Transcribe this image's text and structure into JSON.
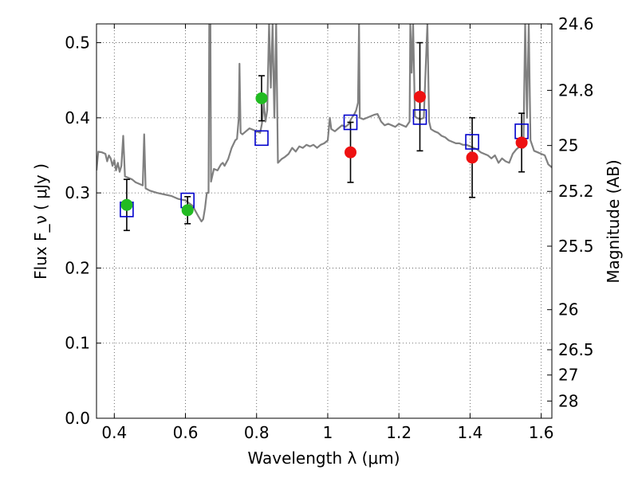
{
  "chart_data": {
    "type": "scatter",
    "title": "",
    "xlabel": "Wavelength  λ (μm)",
    "ylabel": "Flux  F_ν  ( μJy )",
    "ylabel_right": "Magnitude (AB)",
    "xlim": [
      0.35,
      1.63
    ],
    "ylim": [
      0.0,
      0.525
    ],
    "grid": true,
    "x_ticks": [
      0.4,
      0.6,
      0.8,
      1.0,
      1.2,
      1.4,
      1.6
    ],
    "x_tick_labels": [
      "0.4",
      "0.6",
      "0.8",
      "1",
      "1.2",
      "1.4",
      "1.6"
    ],
    "y_ticks": [
      0.0,
      0.1,
      0.2,
      0.3,
      0.4,
      0.5
    ],
    "y_tick_labels": [
      "0.0",
      "0.1",
      "0.2",
      "0.3",
      "0.4",
      "0.5"
    ],
    "mag_ticks": [
      24.6,
      24.8,
      25,
      25.2,
      25.5,
      26,
      26.5,
      27,
      28
    ],
    "mag_tick_labels": [
      "24.6",
      "24.8",
      "25",
      "25.2",
      "25.5",
      "26",
      "26.5",
      "27",
      "28"
    ],
    "series": [
      {
        "marker": "circle",
        "color": "#22bb22",
        "points": [
          {
            "x": 0.435,
            "y": 0.284,
            "err": 0.034
          },
          {
            "x": 0.606,
            "y": 0.277,
            "err": 0.018
          },
          {
            "x": 0.814,
            "y": 0.426,
            "err": 0.03
          }
        ]
      },
      {
        "marker": "circle",
        "color": "#ee1111",
        "points": [
          {
            "x": 1.064,
            "y": 0.354,
            "err": 0.04
          },
          {
            "x": 1.259,
            "y": 0.428,
            "err": 0.072
          },
          {
            "x": 1.406,
            "y": 0.347,
            "err": 0.053
          },
          {
            "x": 1.545,
            "y": 0.367,
            "err": 0.039
          }
        ]
      },
      {
        "marker": "open-square",
        "color": "#0000cc",
        "points": [
          {
            "x": 0.435,
            "y": 0.278
          },
          {
            "x": 0.606,
            "y": 0.29
          },
          {
            "x": 0.814,
            "y": 0.373
          },
          {
            "x": 1.064,
            "y": 0.394
          },
          {
            "x": 1.259,
            "y": 0.401
          },
          {
            "x": 1.406,
            "y": 0.368
          },
          {
            "x": 1.545,
            "y": 0.382
          }
        ]
      }
    ],
    "model_spectrum": {
      "color": "#808080",
      "points": [
        [
          0.35,
          0.33
        ],
        [
          0.355,
          0.355
        ],
        [
          0.365,
          0.354
        ],
        [
          0.375,
          0.352
        ],
        [
          0.38,
          0.342
        ],
        [
          0.385,
          0.35
        ],
        [
          0.39,
          0.346
        ],
        [
          0.395,
          0.336
        ],
        [
          0.4,
          0.344
        ],
        [
          0.405,
          0.33
        ],
        [
          0.41,
          0.34
        ],
        [
          0.415,
          0.328
        ],
        [
          0.42,
          0.336
        ],
        [
          0.425,
          0.376
        ],
        [
          0.43,
          0.322
        ],
        [
          0.44,
          0.32
        ],
        [
          0.45,
          0.318
        ],
        [
          0.46,
          0.314
        ],
        [
          0.47,
          0.312
        ],
        [
          0.48,
          0.31
        ],
        [
          0.484,
          0.378
        ],
        [
          0.488,
          0.306
        ],
        [
          0.5,
          0.303
        ],
        [
          0.52,
          0.3
        ],
        [
          0.54,
          0.298
        ],
        [
          0.56,
          0.296
        ],
        [
          0.58,
          0.292
        ],
        [
          0.6,
          0.29
        ],
        [
          0.62,
          0.283
        ],
        [
          0.635,
          0.27
        ],
        [
          0.645,
          0.262
        ],
        [
          0.65,
          0.265
        ],
        [
          0.655,
          0.28
        ],
        [
          0.66,
          0.3
        ],
        [
          0.665,
          0.3
        ],
        [
          0.667,
          0.525
        ],
        [
          0.67,
          0.525
        ],
        [
          0.672,
          0.315
        ],
        [
          0.68,
          0.332
        ],
        [
          0.69,
          0.33
        ],
        [
          0.7,
          0.338
        ],
        [
          0.705,
          0.34
        ],
        [
          0.71,
          0.336
        ],
        [
          0.72,
          0.345
        ],
        [
          0.73,
          0.36
        ],
        [
          0.74,
          0.37
        ],
        [
          0.745,
          0.372
        ],
        [
          0.75,
          0.4
        ],
        [
          0.752,
          0.472
        ],
        [
          0.755,
          0.38
        ],
        [
          0.76,
          0.378
        ],
        [
          0.77,
          0.382
        ],
        [
          0.78,
          0.386
        ],
        [
          0.79,
          0.384
        ],
        [
          0.8,
          0.382
        ],
        [
          0.81,
          0.38
        ],
        [
          0.815,
          0.392
        ],
        [
          0.82,
          0.42
        ],
        [
          0.825,
          0.395
        ],
        [
          0.83,
          0.41
        ],
        [
          0.835,
          0.525
        ],
        [
          0.84,
          0.44
        ],
        [
          0.845,
          0.525
        ],
        [
          0.85,
          0.4
        ],
        [
          0.855,
          0.525
        ],
        [
          0.86,
          0.34
        ],
        [
          0.87,
          0.345
        ],
        [
          0.88,
          0.348
        ],
        [
          0.89,
          0.352
        ],
        [
          0.9,
          0.36
        ],
        [
          0.91,
          0.355
        ],
        [
          0.92,
          0.362
        ],
        [
          0.93,
          0.36
        ],
        [
          0.94,
          0.364
        ],
        [
          0.95,
          0.362
        ],
        [
          0.96,
          0.364
        ],
        [
          0.97,
          0.36
        ],
        [
          0.98,
          0.364
        ],
        [
          0.99,
          0.366
        ],
        [
          1.0,
          0.37
        ],
        [
          1.003,
          0.385
        ],
        [
          1.006,
          0.4
        ],
        [
          1.01,
          0.385
        ],
        [
          1.02,
          0.382
        ],
        [
          1.03,
          0.386
        ],
        [
          1.04,
          0.39
        ],
        [
          1.05,
          0.388
        ],
        [
          1.06,
          0.392
        ],
        [
          1.065,
          0.398
        ],
        [
          1.075,
          0.405
        ],
        [
          1.08,
          0.41
        ],
        [
          1.085,
          0.42
        ],
        [
          1.088,
          0.525
        ],
        [
          1.09,
          0.4
        ],
        [
          1.1,
          0.398
        ],
        [
          1.11,
          0.4
        ],
        [
          1.12,
          0.402
        ],
        [
          1.13,
          0.404
        ],
        [
          1.14,
          0.405
        ],
        [
          1.15,
          0.395
        ],
        [
          1.16,
          0.39
        ],
        [
          1.17,
          0.392
        ],
        [
          1.18,
          0.39
        ],
        [
          1.19,
          0.388
        ],
        [
          1.2,
          0.392
        ],
        [
          1.21,
          0.39
        ],
        [
          1.22,
          0.388
        ],
        [
          1.23,
          0.395
        ],
        [
          1.232,
          0.525
        ],
        [
          1.236,
          0.46
        ],
        [
          1.24,
          0.525
        ],
        [
          1.245,
          0.402
        ],
        [
          1.25,
          0.4
        ],
        [
          1.26,
          0.398
        ],
        [
          1.27,
          0.4
        ],
        [
          1.28,
          0.525
        ],
        [
          1.285,
          0.395
        ],
        [
          1.29,
          0.385
        ],
        [
          1.3,
          0.382
        ],
        [
          1.31,
          0.38
        ],
        [
          1.32,
          0.376
        ],
        [
          1.33,
          0.374
        ],
        [
          1.34,
          0.37
        ],
        [
          1.35,
          0.368
        ],
        [
          1.36,
          0.366
        ],
        [
          1.37,
          0.366
        ],
        [
          1.38,
          0.364
        ],
        [
          1.39,
          0.364
        ],
        [
          1.4,
          0.362
        ],
        [
          1.41,
          0.36
        ],
        [
          1.42,
          0.358
        ],
        [
          1.43,
          0.354
        ],
        [
          1.44,
          0.352
        ],
        [
          1.45,
          0.35
        ],
        [
          1.46,
          0.346
        ],
        [
          1.47,
          0.35
        ],
        [
          1.48,
          0.34
        ],
        [
          1.49,
          0.346
        ],
        [
          1.5,
          0.342
        ],
        [
          1.51,
          0.34
        ],
        [
          1.52,
          0.352
        ],
        [
          1.53,
          0.358
        ],
        [
          1.54,
          0.362
        ],
        [
          1.55,
          0.36
        ],
        [
          1.555,
          0.525
        ],
        [
          1.56,
          0.4
        ],
        [
          1.565,
          0.525
        ],
        [
          1.57,
          0.37
        ],
        [
          1.58,
          0.356
        ],
        [
          1.59,
          0.354
        ],
        [
          1.6,
          0.352
        ],
        [
          1.61,
          0.35
        ],
        [
          1.62,
          0.338
        ],
        [
          1.63,
          0.334
        ]
      ]
    }
  }
}
